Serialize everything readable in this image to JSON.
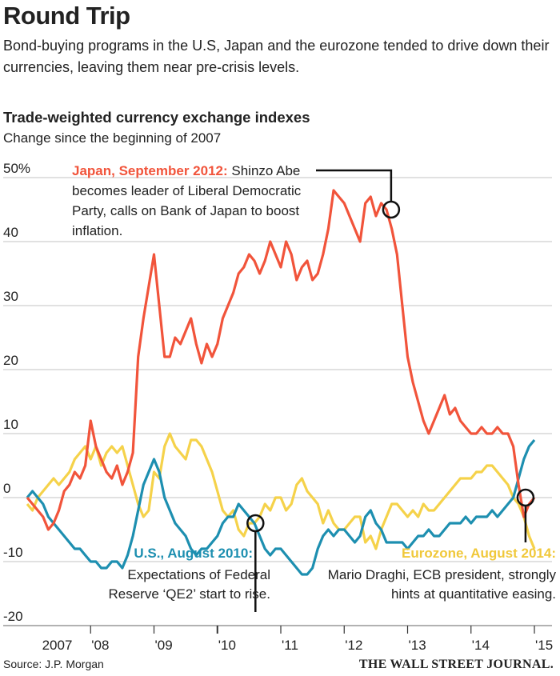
{
  "header": {
    "title": "Round Trip",
    "subtitle": "Bond-buying programs in the U.S, Japan and the eurozone tended to drive down their currencies, leaving them near pre-crisis levels."
  },
  "chart_data": {
    "type": "line",
    "title": "Trade-weighted currency exchange indexes",
    "subtitle": "Change since the beginning of 2007",
    "xlabel": "",
    "ylabel": "",
    "ylim": [
      -20,
      50
    ],
    "xlim": [
      2007,
      2015
    ],
    "y_ticks": [
      {
        "v": 50,
        "label": "50%"
      },
      {
        "v": 40,
        "label": "40"
      },
      {
        "v": 30,
        "label": "30"
      },
      {
        "v": 20,
        "label": "20"
      },
      {
        "v": 10,
        "label": "10"
      },
      {
        "v": 0,
        "label": "0"
      },
      {
        "v": -10,
        "label": "-10"
      },
      {
        "v": -20,
        "label": "-20"
      }
    ],
    "x_ticks": [
      {
        "v": 2007,
        "label": "2007"
      },
      {
        "v": 2008,
        "label": "'08"
      },
      {
        "v": 2009,
        "label": "'09"
      },
      {
        "v": 2010,
        "label": "'10"
      },
      {
        "v": 2011,
        "label": "'11"
      },
      {
        "v": 2012,
        "label": "'12"
      },
      {
        "v": 2013,
        "label": "'13"
      },
      {
        "v": 2014,
        "label": "'14"
      },
      {
        "v": 2015,
        "label": "'15"
      }
    ],
    "grid": true,
    "x_start": 2007,
    "x_step_months": 1,
    "series": [
      {
        "name": "Japan",
        "color": "#f1543b",
        "values": [
          0,
          -1,
          -2,
          -3,
          -5,
          -4,
          -2,
          1,
          2,
          4,
          3,
          5,
          12,
          8,
          6,
          4,
          3,
          5,
          2,
          4,
          7,
          22,
          28,
          33,
          38,
          30,
          22,
          22,
          25,
          24,
          26,
          28,
          24,
          21,
          24,
          22,
          24,
          28,
          30,
          32,
          35,
          36,
          38,
          37,
          35,
          37,
          40,
          38,
          36,
          40,
          38,
          34,
          36,
          37,
          34,
          35,
          38,
          42,
          48,
          47,
          46,
          44,
          42,
          40,
          46,
          47,
          44,
          46,
          45,
          42,
          38,
          30,
          22,
          18,
          15,
          12,
          10,
          12,
          14,
          16,
          13,
          14,
          12,
          11,
          10,
          10,
          11,
          10,
          10,
          11,
          10,
          10,
          8,
          2,
          -3,
          -1,
          0
        ]
      },
      {
        "name": "U.S.",
        "color": "#1d8fb0",
        "values": [
          0,
          1,
          0,
          -1,
          -3,
          -4,
          -5,
          -6,
          -7,
          -8,
          -8,
          -9,
          -10,
          -10,
          -11,
          -11,
          -10,
          -10,
          -11,
          -9,
          -6,
          -2,
          2,
          4,
          6,
          4,
          0,
          -2,
          -4,
          -5,
          -6,
          -8,
          -9,
          -8,
          -8,
          -7,
          -6,
          -4,
          -3,
          -3,
          -1,
          -2,
          -3,
          -4,
          -6,
          -8,
          -9,
          -8,
          -8,
          -9,
          -10,
          -11,
          -12,
          -12,
          -11,
          -8,
          -6,
          -5,
          -6,
          -5,
          -5,
          -6,
          -7,
          -6,
          -3,
          -2,
          -4,
          -5,
          -7,
          -7,
          -7,
          -7,
          -8,
          -7,
          -6,
          -6,
          -5,
          -6,
          -6,
          -5,
          -4,
          -4,
          -4,
          -3,
          -4,
          -3,
          -3,
          -3,
          -2,
          -3,
          -2,
          -1,
          0,
          3,
          6,
          8,
          9
        ]
      },
      {
        "name": "Eurozone",
        "color": "#f5d24a",
        "values": [
          -1,
          -2,
          0,
          1,
          2,
          3,
          2,
          3,
          4,
          6,
          7,
          8,
          6,
          8,
          5,
          7,
          8,
          7,
          8,
          5,
          2,
          -1,
          -3,
          -2,
          4,
          3,
          8,
          10,
          8,
          7,
          6,
          9,
          9,
          8,
          6,
          4,
          1,
          -2,
          -3,
          -2,
          -5,
          -6,
          -4,
          -4,
          -3,
          -1,
          -2,
          0,
          0,
          -2,
          -1,
          2,
          3,
          1,
          0,
          -1,
          -4,
          -2,
          -4,
          -5,
          -5,
          -4,
          -3,
          -3,
          -7,
          -6,
          -8,
          -5,
          -3,
          -1,
          -1,
          -2,
          -3,
          -2,
          -3,
          -1,
          -2,
          -2,
          -1,
          0,
          1,
          2,
          3,
          3,
          3,
          4,
          4,
          5,
          5,
          4,
          3,
          2,
          0,
          -1,
          -3,
          -6,
          -8
        ]
      }
    ],
    "annotations": [
      {
        "series": "Japan",
        "x": 2012.74,
        "y": 45,
        "label": "Japan, September 2012:",
        "text": [
          "Shinzo Abe",
          "becomes leader of Liberal Democratic",
          "Party, calls on Bank of Japan to boost",
          "inflation."
        ]
      },
      {
        "series": "U.S.",
        "x": 2010.6,
        "y": -4,
        "label": "U.S., August 2010:",
        "text": [
          "Expectations of Federal",
          "Reserve ‘QE2’ start to rise."
        ]
      },
      {
        "series": "Eurozone",
        "x": 2014.86,
        "y": 0,
        "label": "Eurozone, August 2014:",
        "text": [
          "Mario Draghi, ECB president, strongly",
          "hints at quantitative easing."
        ]
      }
    ]
  },
  "footer": {
    "source": "Source: J.P. Morgan",
    "publisher": "THE WALL STREET JOURNAL."
  }
}
